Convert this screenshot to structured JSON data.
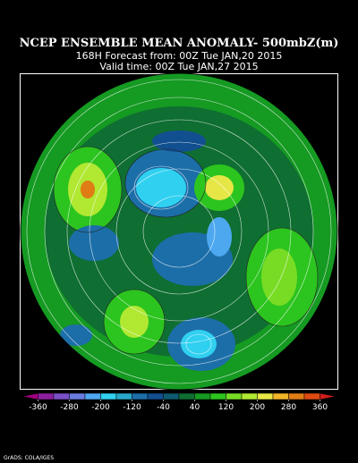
{
  "header": {
    "title": "NCEP ENSEMBLE MEAN ANOMALY- 500mbZ(m)",
    "forecast": "168H Forecast from: 00Z Tue JAN,20 2015",
    "valid": "Valid time: 00Z Tue JAN,27 2015"
  },
  "colorbar": {
    "lim": [
      -400,
      400
    ],
    "ticks": [
      -360,
      -280,
      -200,
      -120,
      -40,
      40,
      120,
      200,
      280,
      360
    ],
    "colors": [
      "#a0007e",
      "#8c1fa0",
      "#7a50c8",
      "#6a7ce0",
      "#4ea8f0",
      "#30d0f0",
      "#28a8c8",
      "#1c6ea8",
      "#124f90",
      "#0e5a6e",
      "#0f6e32",
      "#159a22",
      "#2cc41e",
      "#78dc24",
      "#b0e832",
      "#e6e646",
      "#f0b428",
      "#e07c14",
      "#e04a10",
      "#d21c1c"
    ]
  },
  "footer": {
    "credit": "GrADS: COLA/IGES"
  }
}
